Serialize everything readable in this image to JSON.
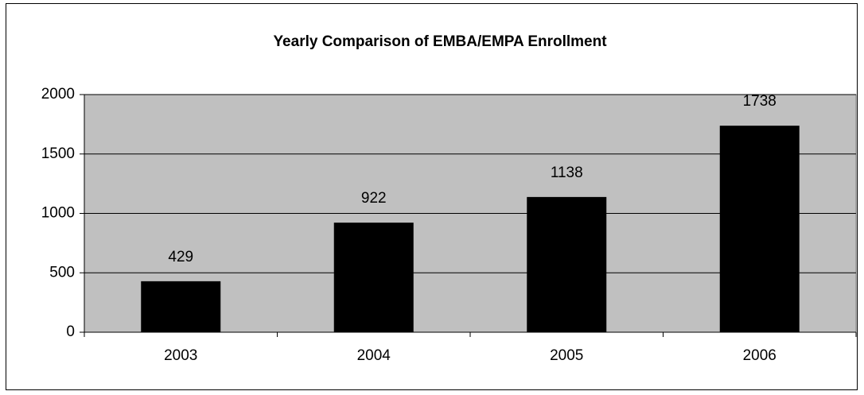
{
  "chart_data": {
    "type": "bar",
    "title": "Yearly Comparison of EMBA/EMPA Enrollment",
    "categories": [
      "2003",
      "2004",
      "2005",
      "2006"
    ],
    "values": [
      429,
      922,
      1138,
      1738
    ],
    "color": "#000000",
    "ylim": [
      0,
      2000
    ],
    "yticks": [
      0,
      500,
      1000,
      1500,
      2000
    ],
    "grid": true,
    "plot_background": "#c0c0c0"
  }
}
